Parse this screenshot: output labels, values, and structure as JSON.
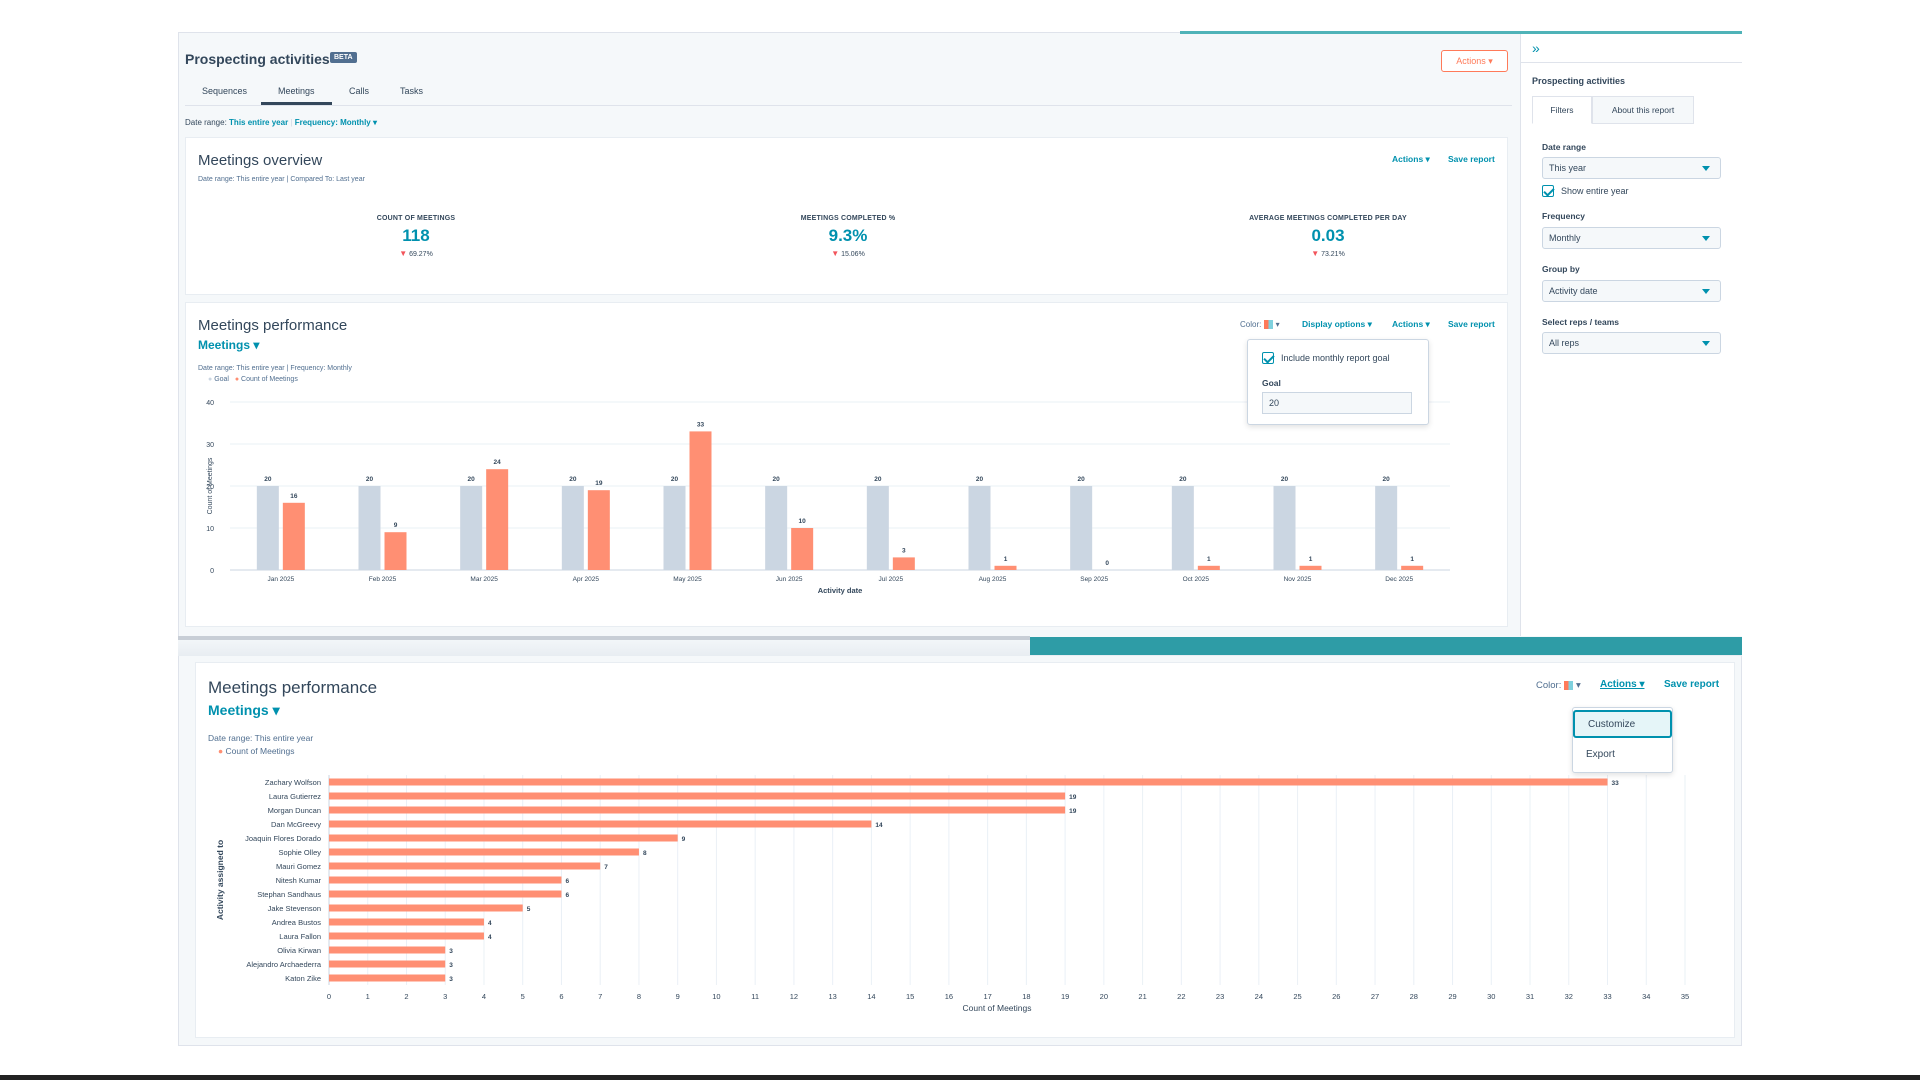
{
  "header": {
    "title": "Prospecting activities",
    "badge": "BETA",
    "actions_label": "Actions ▾"
  },
  "tabs": [
    {
      "label": "Sequences"
    },
    {
      "label": "Meetings"
    },
    {
      "label": "Calls"
    },
    {
      "label": "Tasks"
    }
  ],
  "filters": {
    "date_range_label": "Date range:",
    "date_range_value": "This entire year",
    "frequency_value": "Frequency: Monthly ▾"
  },
  "overview": {
    "title": "Meetings overview",
    "subtitle": "Date range: This entire year  |  Compared To: Last year",
    "actions_label": "Actions ▾",
    "save_label": "Save report",
    "kpis": [
      {
        "label": "COUNT OF MEETINGS",
        "value": "118",
        "change": "69.27%"
      },
      {
        "label": "MEETINGS COMPLETED %",
        "value": "9.3%",
        "change": "15.06%"
      },
      {
        "label": "AVERAGE MEETINGS COMPLETED PER DAY",
        "value": "0.03",
        "change": "73.21%"
      }
    ]
  },
  "performance": {
    "title": "Meetings performance",
    "metric_selector": "Meetings ▾",
    "subtitle": "Date range: This entire year  |  Frequency: Monthly",
    "color_label": "Color:",
    "display_options_label": "Display options ▾",
    "actions_label": "Actions ▾",
    "save_label": "Save report",
    "legend": [
      "Goal",
      "Count of Meetings"
    ],
    "popover": {
      "checkbox_label": "Include monthly report goal",
      "goal_label": "Goal",
      "goal_value": "20"
    }
  },
  "sidebar": {
    "title": "Prospecting activities",
    "tab_filters": "Filters",
    "tab_about": "About this report",
    "date_range_label": "Date range",
    "date_range_value": "This year",
    "show_entire_year": "Show entire year",
    "frequency_label": "Frequency",
    "frequency_value": "Monthly",
    "group_by_label": "Group by",
    "group_by_value": "Activity date",
    "reps_label": "Select reps / teams",
    "reps_value": "All reps"
  },
  "performance_bottom": {
    "title": "Meetings performance",
    "metric_selector": "Meetings ▾",
    "subtitle": "Date range: This entire year",
    "legend": [
      "Count of Meetings"
    ],
    "color_label": "Color:",
    "actions_label": "Actions ▾",
    "save_label": "Save report",
    "menu": [
      "Customize",
      "Export"
    ]
  },
  "colors": {
    "accent": "#0091ae",
    "bar_orange": "#ff8f73",
    "bar_gray": "#cbd6e2",
    "teal_bar": "#2e9ca6"
  },
  "chart_data": [
    {
      "type": "bar",
      "categories": [
        "Jan 2025",
        "Feb 2025",
        "Mar 2025",
        "Apr 2025",
        "May 2025",
        "Jun 2025",
        "Jul 2025",
        "Aug 2025",
        "Sep 2025",
        "Oct 2025",
        "Nov 2025",
        "Dec 2025"
      ],
      "series": [
        {
          "name": "Goal",
          "values": [
            20,
            20,
            20,
            20,
            20,
            20,
            20,
            20,
            20,
            20,
            20,
            20
          ]
        },
        {
          "name": "Count of Meetings",
          "values": [
            16,
            9,
            24,
            19,
            33,
            10,
            3,
            1,
            0,
            1,
            1,
            1
          ]
        }
      ],
      "xlabel": "Activity date",
      "ylabel": "Count of Meetings",
      "ylim": [
        0,
        40
      ],
      "yticks": [
        0,
        10,
        20,
        30,
        40
      ],
      "grid": true,
      "legend_position": "top-left"
    },
    {
      "type": "bar",
      "orientation": "horizontal",
      "categories": [
        "Zachary Wolfson",
        "Laura Gutierrez",
        "Morgan Duncan",
        "Dan McGreevy",
        "Joaquin Flores Dorado",
        "Sophie Olley",
        "Mauri Gomez",
        "Nitesh Kumar",
        "Stephan Sandhaus",
        "Jake Stevenson",
        "Andrea Bustos",
        "Laura Fallon",
        "Olivia Kirwan",
        "Alejandro Archaederra",
        "Katon Zike"
      ],
      "series": [
        {
          "name": "Count of Meetings",
          "values": [
            33,
            19,
            19,
            14,
            9,
            8,
            7,
            6,
            6,
            5,
            4,
            4,
            3,
            3,
            3
          ]
        }
      ],
      "xlabel": "Count of Meetings",
      "ylabel": "Activity assigned to",
      "xlim": [
        0,
        35
      ],
      "xticks": [
        0,
        1,
        2,
        3,
        4,
        5,
        6,
        7,
        8,
        9,
        10,
        11,
        12,
        13,
        14,
        15,
        16,
        17,
        18,
        19,
        20,
        21,
        22,
        23,
        24,
        25,
        26,
        27,
        28,
        29,
        30,
        31,
        32,
        33,
        34,
        35
      ],
      "grid": true,
      "legend_position": "top-left"
    }
  ]
}
